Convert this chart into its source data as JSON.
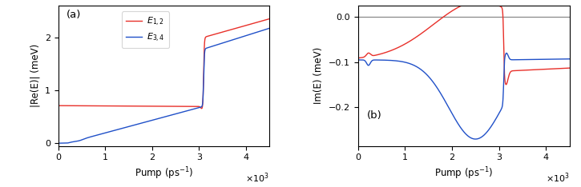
{
  "red_color": "#e8302a",
  "blue_color": "#2050c8",
  "gray_color": "#888888",
  "fig_width": 7.25,
  "fig_height": 2.34,
  "dpi": 100,
  "panel_a_xlim": [
    0,
    4500
  ],
  "panel_a_ylim": [
    -0.05,
    2.6
  ],
  "panel_b_xlim": [
    0,
    4500
  ],
  "panel_b_ylim": [
    -0.285,
    0.025
  ],
  "panel_a_yticks": [
    0,
    1,
    2
  ],
  "panel_b_yticks": [
    0,
    -0.1,
    -0.2
  ],
  "panel_a_xticks": [
    0,
    1000,
    2000,
    3000,
    4000
  ],
  "panel_b_xticks": [
    0,
    1000,
    2000,
    3000,
    4000
  ],
  "xlabel": "Pump (ps$^{-1}$)",
  "panel_a_ylabel": "|Re(E)| (meV)",
  "panel_b_ylabel": "Im(E) (meV)",
  "label_a": "(a)",
  "label_b": "(b)",
  "legend_e12": "$E_{1,2}$",
  "legend_e34": "$E_{3,4}$"
}
